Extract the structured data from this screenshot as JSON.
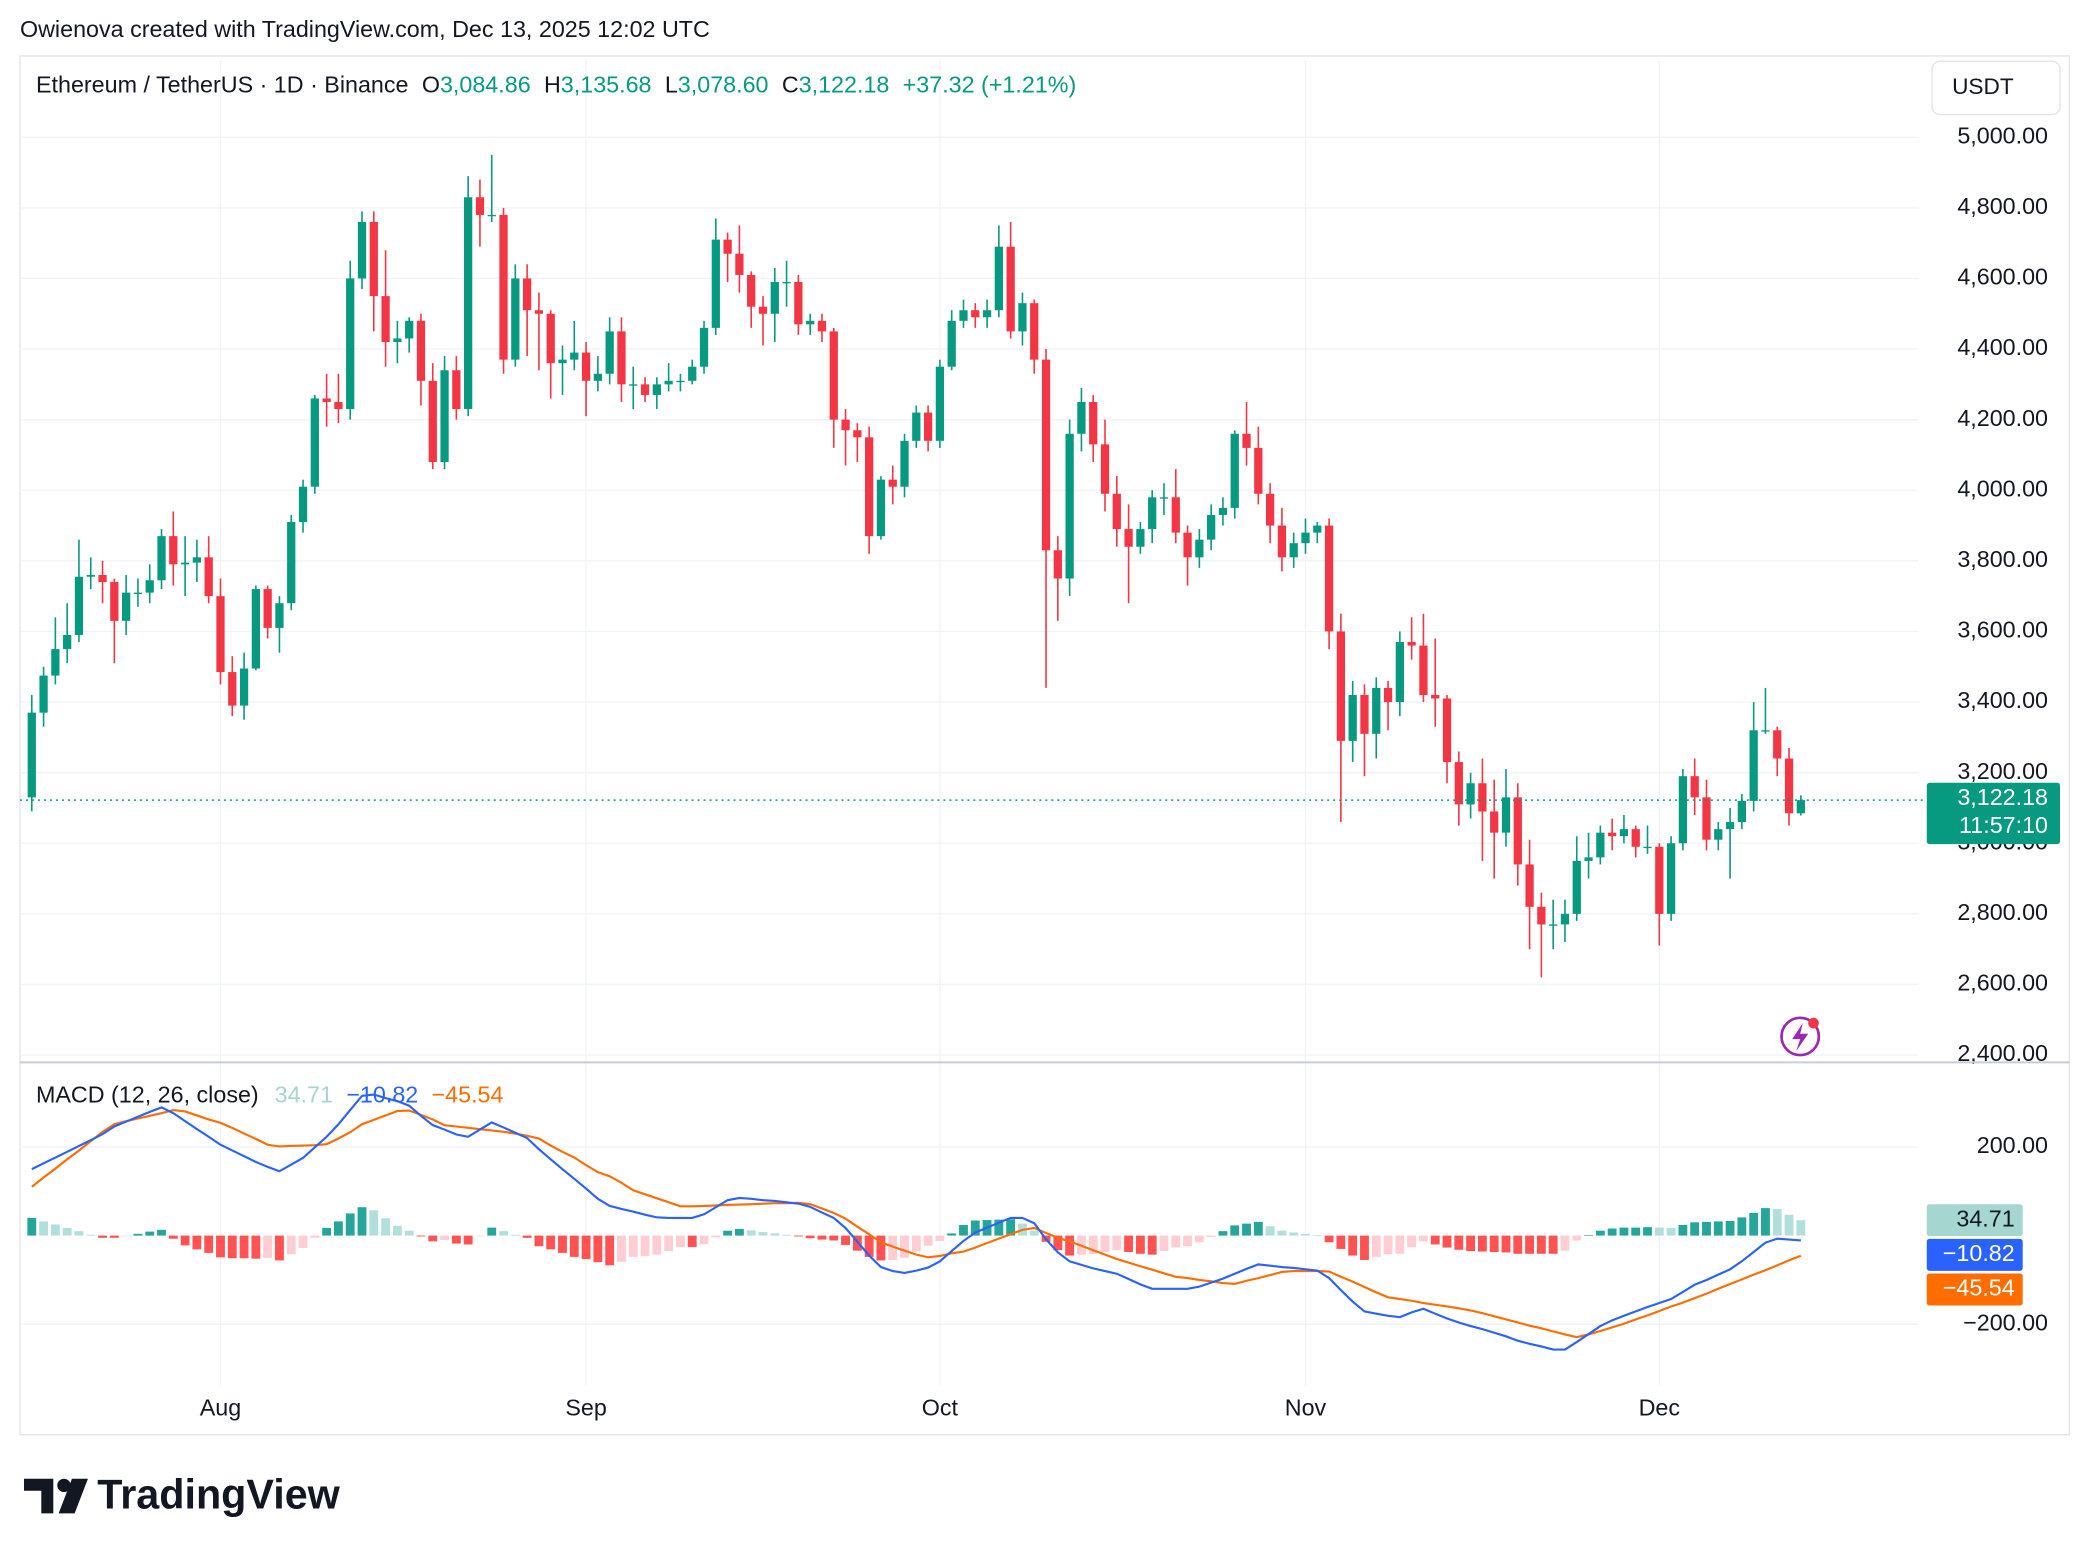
{
  "header": {
    "attribution": "Owienova created with TradingView.com, Dec 13, 2025 12:02 UTC",
    "logo": "TradingView"
  },
  "chart_data": [
    {
      "type": "candlestick",
      "title": "Ethereum / TetherUS · 1D · Binance",
      "ohlc_legend": [
        {
          "key": "O",
          "text": "3,084.86"
        },
        {
          "key": "H",
          "text": "3,135.68"
        },
        {
          "key": "L",
          "text": "3,078.60"
        },
        {
          "key": "C",
          "text": "3,122.18"
        }
      ],
      "change_label": "+37.32 (+1.21%)",
      "currency": "USDT",
      "price_label": "3,122.18",
      "countdown": "11:57:10",
      "up_color": "#089981",
      "down_color": "#f23645",
      "grid": true,
      "open": [
        3130,
        3370,
        3475,
        3550,
        3590,
        3755,
        3760,
        3740,
        3630,
        3710,
        3710,
        3745,
        3870,
        3790,
        3795,
        3810,
        3700,
        3485,
        3390,
        3495,
        3720,
        3610,
        3680,
        3910,
        4010,
        4260,
        4250,
        4230,
        4600,
        4760,
        4550,
        4420,
        4430,
        4480,
        4310,
        4080,
        4340,
        4230,
        4830,
        4780,
        4780,
        4370,
        4600,
        4510,
        4500,
        4360,
        4370,
        4390,
        4310,
        4330,
        4450,
        4300,
        4300,
        4270,
        4300,
        4310,
        4310,
        4350,
        4460,
        4710,
        4670,
        4610,
        4520,
        4500,
        4590,
        4590,
        4470,
        4480,
        4450,
        4200,
        4170,
        4150,
        3870,
        4030,
        4010,
        4140,
        4220,
        4140,
        4350,
        4480,
        4510,
        4490,
        4510,
        4690,
        4450,
        4530,
        4370,
        3830,
        3750,
        4160,
        4250,
        4130,
        3990,
        3890,
        3840,
        3890,
        3980,
        3980,
        3880,
        3810,
        3860,
        3930,
        3950,
        4160,
        4120,
        3990,
        3900,
        3810,
        3850,
        3880,
        3900,
        3600,
        3290,
        3420,
        3310,
        3440,
        3400,
        3570,
        3560,
        3420,
        3410,
        3230,
        3110,
        3170,
        3090,
        3030,
        3130,
        2940,
        2820,
        2770,
        2770,
        2800,
        2950,
        2960,
        3030,
        3020,
        3040,
        2990,
        2990,
        2800,
        3000,
        3190,
        3130,
        3010,
        3040,
        3060,
        3120,
        3320,
        3320,
        3240,
        3084.86
      ],
      "high": [
        3420,
        3500,
        3640,
        3680,
        3860,
        3810,
        3800,
        3750,
        3760,
        3750,
        3790,
        3890,
        3940,
        3870,
        3860,
        3870,
        3750,
        3530,
        3540,
        3730,
        3730,
        3700,
        3930,
        4030,
        4270,
        4330,
        4330,
        4650,
        4790,
        4790,
        4680,
        4480,
        4490,
        4500,
        4360,
        4380,
        4380,
        4890,
        4880,
        4950,
        4800,
        4640,
        4640,
        4560,
        4510,
        4410,
        4480,
        4420,
        4380,
        4490,
        4490,
        4350,
        4320,
        4320,
        4360,
        4330,
        4370,
        4480,
        4770,
        4730,
        4750,
        4620,
        4550,
        4630,
        4650,
        4610,
        4500,
        4500,
        4460,
        4230,
        4190,
        4180,
        4040,
        4070,
        4160,
        4240,
        4240,
        4370,
        4510,
        4540,
        4530,
        4540,
        4750,
        4760,
        4560,
        4540,
        4400,
        3870,
        4200,
        4290,
        4270,
        4200,
        4040,
        3960,
        3910,
        4000,
        4020,
        4060,
        3900,
        3890,
        3960,
        3980,
        4170,
        4250,
        4180,
        4020,
        3950,
        3880,
        3920,
        3910,
        3920,
        3650,
        3460,
        3450,
        3470,
        3460,
        3600,
        3640,
        3650,
        3580,
        3420,
        3260,
        3200,
        3240,
        3180,
        3210,
        3170,
        3010,
        2860,
        2840,
        2840,
        3020,
        3030,
        3050,
        3070,
        3080,
        3050,
        3050,
        3000,
        3020,
        3210,
        3240,
        3180,
        3060,
        3100,
        3140,
        3400,
        3440,
        3330,
        3270,
        3135.68
      ],
      "low": [
        3090,
        3330,
        3450,
        3510,
        3570,
        3720,
        3680,
        3510,
        3590,
        3670,
        3680,
        3720,
        3730,
        3700,
        3740,
        3680,
        3450,
        3360,
        3350,
        3490,
        3580,
        3540,
        3660,
        3880,
        3990,
        4180,
        4190,
        4200,
        4570,
        4450,
        4350,
        4360,
        4390,
        4240,
        4060,
        4060,
        4200,
        4210,
        4690,
        4760,
        4330,
        4350,
        4380,
        4340,
        4260,
        4270,
        4340,
        4210,
        4280,
        4300,
        4250,
        4230,
        4250,
        4230,
        4280,
        4280,
        4300,
        4330,
        4440,
        4590,
        4560,
        4460,
        4410,
        4420,
        4520,
        4440,
        4440,
        4420,
        4120,
        4070,
        4080,
        3820,
        3860,
        3960,
        3980,
        4120,
        4110,
        4120,
        4340,
        4460,
        4460,
        4460,
        4490,
        4430,
        4410,
        4330,
        3440,
        3630,
        3700,
        4110,
        4080,
        3940,
        3840,
        3680,
        3820,
        3850,
        3930,
        3850,
        3730,
        3780,
        3830,
        3900,
        3920,
        4070,
        3960,
        3850,
        3770,
        3780,
        3820,
        3850,
        3550,
        3060,
        3230,
        3190,
        3240,
        3320,
        3360,
        3520,
        3400,
        3330,
        3170,
        3050,
        3070,
        2950,
        2900,
        2990,
        2880,
        2700,
        2620,
        2700,
        2720,
        2780,
        2900,
        2940,
        2980,
        3000,
        2960,
        2970,
        2710,
        2780,
        2980,
        3080,
        2980,
        2980,
        2900,
        3040,
        3090,
        3310,
        3190,
        3050,
        3078.6
      ],
      "close": [
        3370,
        3475,
        3550,
        3590,
        3755,
        3760,
        3740,
        3630,
        3710,
        3710,
        3745,
        3870,
        3790,
        3795,
        3810,
        3700,
        3485,
        3390,
        3495,
        3720,
        3610,
        3680,
        3910,
        4010,
        4260,
        4250,
        4230,
        4600,
        4760,
        4550,
        4420,
        4430,
        4480,
        4310,
        4080,
        4340,
        4230,
        4830,
        4780,
        4780,
        4370,
        4600,
        4510,
        4500,
        4360,
        4370,
        4390,
        4310,
        4330,
        4450,
        4300,
        4300,
        4270,
        4300,
        4310,
        4310,
        4350,
        4460,
        4710,
        4670,
        4610,
        4520,
        4500,
        4590,
        4590,
        4470,
        4480,
        4450,
        4200,
        4170,
        4150,
        3870,
        4030,
        4010,
        4140,
        4220,
        4140,
        4350,
        4480,
        4510,
        4490,
        4510,
        4690,
        4450,
        4530,
        4370,
        3830,
        3750,
        4160,
        4250,
        4130,
        3990,
        3890,
        3840,
        3890,
        3980,
        3980,
        3880,
        3810,
        3860,
        3930,
        3950,
        4160,
        4120,
        3990,
        3900,
        3810,
        3850,
        3880,
        3900,
        3600,
        3290,
        3420,
        3310,
        3440,
        3400,
        3570,
        3560,
        3420,
        3410,
        3230,
        3110,
        3170,
        3090,
        3030,
        3130,
        2940,
        2820,
        2770,
        2770,
        2800,
        2950,
        2960,
        3030,
        3020,
        3040,
        2990,
        2990,
        2800,
        3000,
        3190,
        3130,
        3010,
        3040,
        3060,
        3120,
        3320,
        3320,
        3240,
        3084.86,
        3122.18
      ],
      "xlim": [
        -1,
        160
      ],
      "xticks": [
        {
          "value": 16,
          "label": "Aug"
        },
        {
          "value": 47,
          "label": "Sep"
        },
        {
          "value": 77,
          "label": "Oct"
        },
        {
          "value": 108,
          "label": "Nov"
        },
        {
          "value": 138,
          "label": "Dec"
        }
      ],
      "ylim": [
        2381,
        5219
      ],
      "yticks": [
        {
          "value": 2400,
          "label": "2,400.00"
        },
        {
          "value": 2600,
          "label": "2,600.00"
        },
        {
          "value": 2800,
          "label": "2,800.00"
        },
        {
          "value": 3000,
          "label": "3,000.00"
        },
        {
          "value": 3200,
          "label": "3,200.00"
        },
        {
          "value": 3400,
          "label": "3,400.00"
        },
        {
          "value": 3600,
          "label": "3,600.00"
        },
        {
          "value": 3800,
          "label": "3,800.00"
        },
        {
          "value": 4000,
          "label": "4,000.00"
        },
        {
          "value": 4200,
          "label": "4,200.00"
        },
        {
          "value": 4400,
          "label": "4,400.00"
        },
        {
          "value": 4600,
          "label": "4,600.00"
        },
        {
          "value": 4800,
          "label": "4,800.00"
        },
        {
          "value": 5000,
          "label": "5,000.00"
        }
      ]
    },
    {
      "type": "macd",
      "title": "MACD (12, 26, close)",
      "ylim": [
        -338,
        383
      ],
      "yticks": [
        {
          "value": 200,
          "label": "200.00"
        },
        {
          "value": -200,
          "label": "−200.00"
        }
      ],
      "histogram": {
        "last_label": "34.71",
        "label_color": "#a5d6d0",
        "colors": {
          "up_rising": "#26a69a",
          "up_falling": "#b2dfdb",
          "down_falling": "#ff5252",
          "down_rising": "#ffcdd2"
        },
        "values": [
          40,
          32,
          25,
          17,
          10,
          2,
          -5,
          -5,
          -1,
          4,
          9,
          13,
          -7,
          -22,
          -31,
          -39,
          -49,
          -51,
          -51,
          -52,
          -50,
          -56,
          -42,
          -28,
          -5,
          17,
          32,
          50,
          64,
          57,
          39,
          22,
          11,
          -2,
          -13,
          -10,
          -18,
          -20,
          -1,
          18,
          10,
          2,
          -5,
          -24,
          -31,
          -39,
          -48,
          -53,
          -60,
          -67,
          -59,
          -48,
          -46,
          -43,
          -35,
          -26,
          -26,
          -19,
          -4,
          11,
          15,
          12,
          8,
          5,
          2,
          -2,
          -6,
          -9,
          -11,
          -21,
          -34,
          -48,
          -56,
          -55,
          -50,
          -36,
          -23,
          -12,
          5,
          24,
          34,
          35,
          36,
          37,
          27,
          11,
          -14,
          -33,
          -45,
          -43,
          -41,
          -37,
          -33,
          -37,
          -41,
          -43,
          -35,
          -27,
          -24,
          -15,
          -3,
          10,
          23,
          27,
          31,
          21,
          11,
          7,
          4,
          1,
          -15,
          -30,
          -45,
          -55,
          -48,
          -42,
          -41,
          -26,
          -13,
          -20,
          -27,
          -32,
          -35,
          -36,
          -37,
          -38,
          -41,
          -41,
          -41,
          -41,
          -34,
          -11,
          1,
          11,
          16,
          18,
          18,
          19,
          18,
          17,
          24,
          30,
          31,
          32,
          33,
          41,
          51,
          62,
          60,
          47,
          34.71
        ]
      },
      "macd": {
        "last_label": "−10.82",
        "color": "#2962ff",
        "values": [
          150,
          163,
          176,
          189,
          202,
          215,
          229,
          246,
          257,
          268,
          279,
          289,
          276,
          258,
          240,
          223,
          205,
          192,
          179,
          166,
          155,
          145,
          160,
          175,
          199,
          223,
          251,
          283,
          315,
          318,
          310,
          303,
          293,
          270,
          249,
          239,
          228,
          223,
          239,
          255,
          244,
          232,
          220,
          195,
          172,
          150,
          128,
          106,
          83,
          67,
          60,
          54,
          47,
          41,
          40,
          40,
          40,
          48,
          64,
          80,
          85,
          83,
          80,
          78,
          75,
          72,
          65,
          52,
          40,
          17,
          -14,
          -45,
          -71,
          -80,
          -84,
          -79,
          -72,
          -58,
          -35,
          -12,
          7,
          18,
          29,
          40,
          40,
          28,
          -8,
          -38,
          -58,
          -66,
          -74,
          -80,
          -86,
          -98,
          -110,
          -120,
          -120,
          -120,
          -120,
          -115,
          -106,
          -97,
          -86,
          -75,
          -65,
          -68,
          -71,
          -73,
          -76,
          -79,
          -96,
          -123,
          -149,
          -171,
          -176,
          -181,
          -184,
          -173,
          -165,
          -176,
          -187,
          -196,
          -204,
          -211,
          -219,
          -227,
          -237,
          -244,
          -250,
          -257,
          -257,
          -240,
          -222,
          -204,
          -191,
          -181,
          -171,
          -161,
          -152,
          -143,
          -127,
          -111,
          -100,
          -88,
          -76,
          -58,
          -37,
          -16,
          -7,
          -9,
          -10.82
        ]
      },
      "signal": {
        "last_label": "−45.54",
        "color": "#ff6d00",
        "values": [
          110,
          131,
          151,
          172,
          192,
          213,
          234,
          251,
          258,
          264,
          270,
          276,
          283,
          280,
          271,
          262,
          254,
          243,
          230,
          218,
          205,
          201,
          202,
          203,
          204,
          206,
          219,
          233,
          251,
          261,
          271,
          281,
          282,
          272,
          262,
          249,
          246,
          243,
          240,
          237,
          234,
          230,
          225,
          219,
          203,
          189,
          176,
          159,
          143,
          134,
          119,
          102,
          93,
          84,
          75,
          66,
          66,
          67,
          68,
          69,
          70,
          71,
          72,
          73,
          73,
          74,
          71,
          61,
          51,
          38,
          20,
          3,
          -15,
          -25,
          -34,
          -43,
          -49,
          -46,
          -40,
          -36,
          -27,
          -17,
          -7,
          3,
          13,
          17,
          6,
          -5,
          -13,
          -23,
          -33,
          -43,
          -53,
          -61,
          -69,
          -77,
          -85,
          -93,
          -96,
          -100,
          -103,
          -107,
          -109,
          -102,
          -96,
          -89,
          -82,
          -80,
          -80,
          -80,
          -81,
          -93,
          -104,
          -116,
          -128,
          -139,
          -143,
          -147,
          -152,
          -156,
          -160,
          -164,
          -169,
          -175,
          -182,
          -189,
          -196,
          -203,
          -209,
          -216,
          -223,
          -229,
          -223,
          -215,
          -207,
          -199,
          -189,
          -180,
          -170,
          -160,
          -151,
          -141,
          -131,
          -120,
          -109,
          -99,
          -88,
          -78,
          -67,
          -56,
          -45.54
        ]
      }
    }
  ]
}
